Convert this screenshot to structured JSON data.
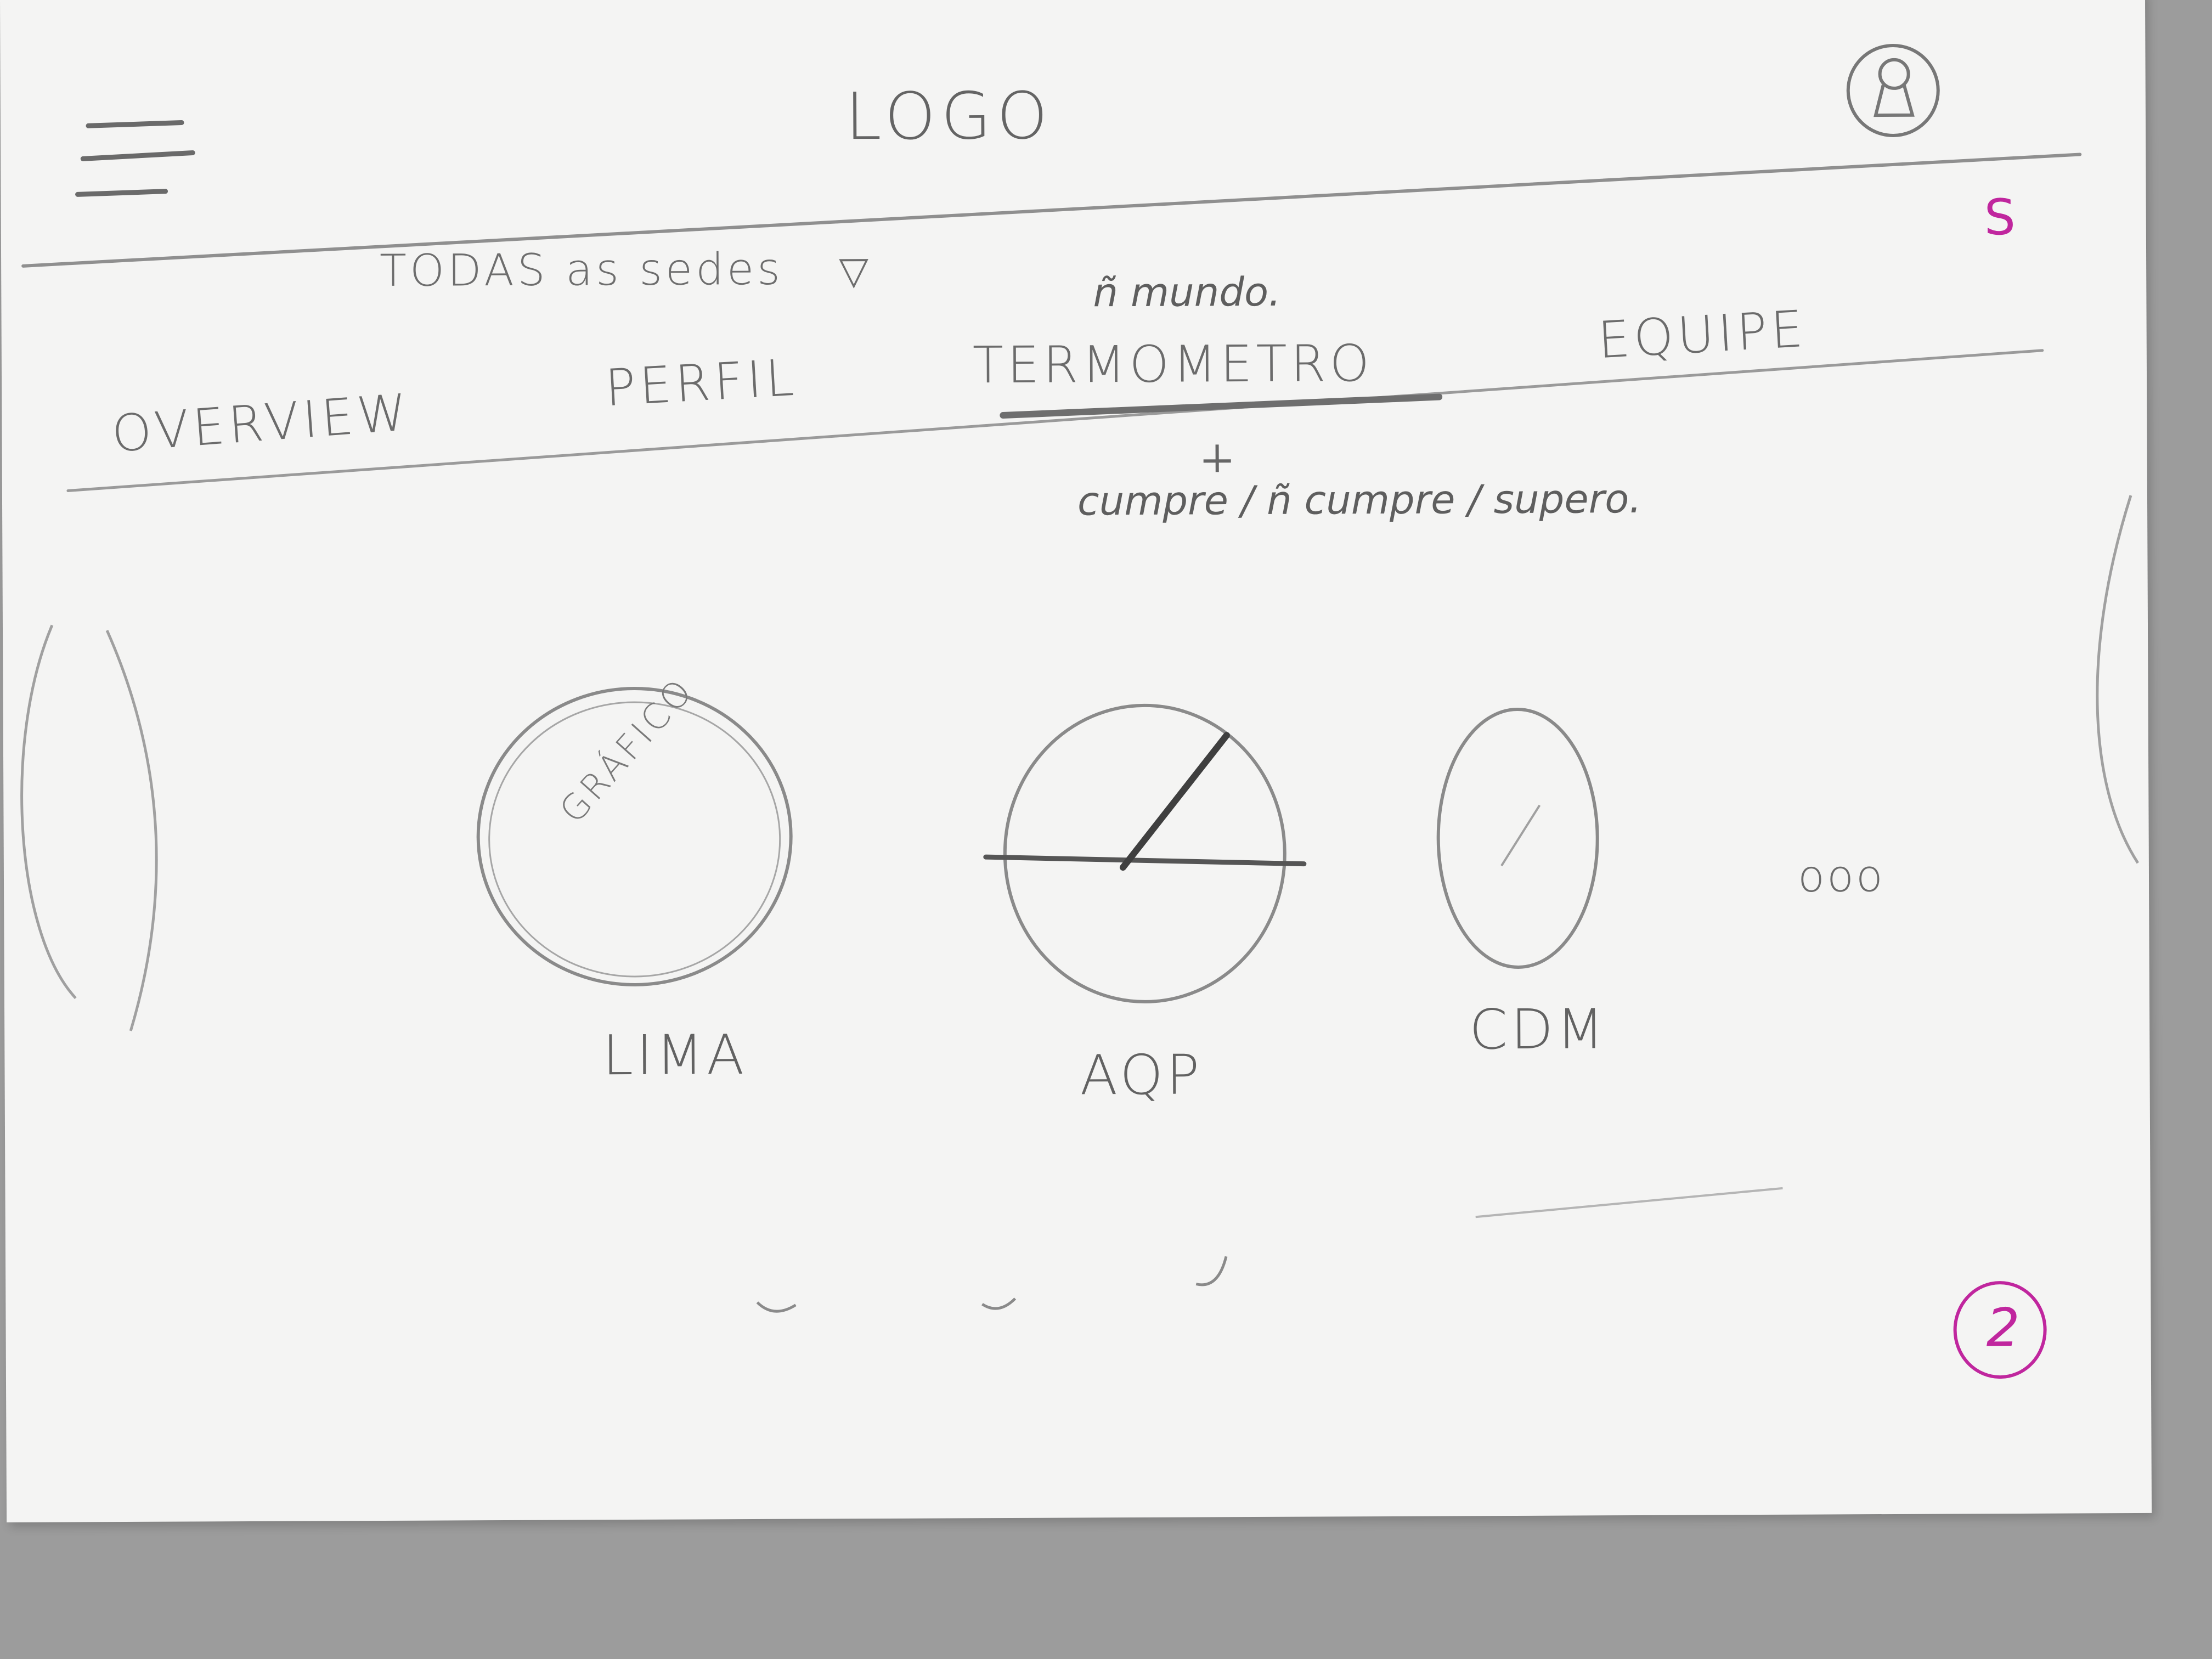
{
  "header": {
    "logo_text": "LOGO",
    "menu_icon": "hamburger-menu-icon",
    "user_icon": "user-avatar-icon"
  },
  "filter": {
    "dropdown_label": "TODAS as sedes",
    "caret_glyph": "▽"
  },
  "tabs": [
    {
      "label": "OVERVIEW",
      "active": false
    },
    {
      "label": "PERFIL",
      "active": false
    },
    {
      "label": "TERMOMETRO",
      "active": true
    },
    {
      "label": "EQUIPE",
      "active": false
    }
  ],
  "annotations": {
    "above_tab": "ñ mundo.",
    "below_tab": "cumpre / ñ cumpre / supero."
  },
  "gauges": [
    {
      "label": "LIMA",
      "inner_text": "GRÁFICO"
    },
    {
      "label": "AQP",
      "inner_text": ""
    },
    {
      "label": "CDM",
      "inner_text": ""
    }
  ],
  "more_indicator": "ooo",
  "page_marks": {
    "corner_mark": "S",
    "page_number": "2"
  },
  "colors": {
    "paper": "#f4f4f3",
    "pencil": "#6a6a6a",
    "magenta_ink": "#c0269e",
    "background": "#9c9c9c"
  }
}
